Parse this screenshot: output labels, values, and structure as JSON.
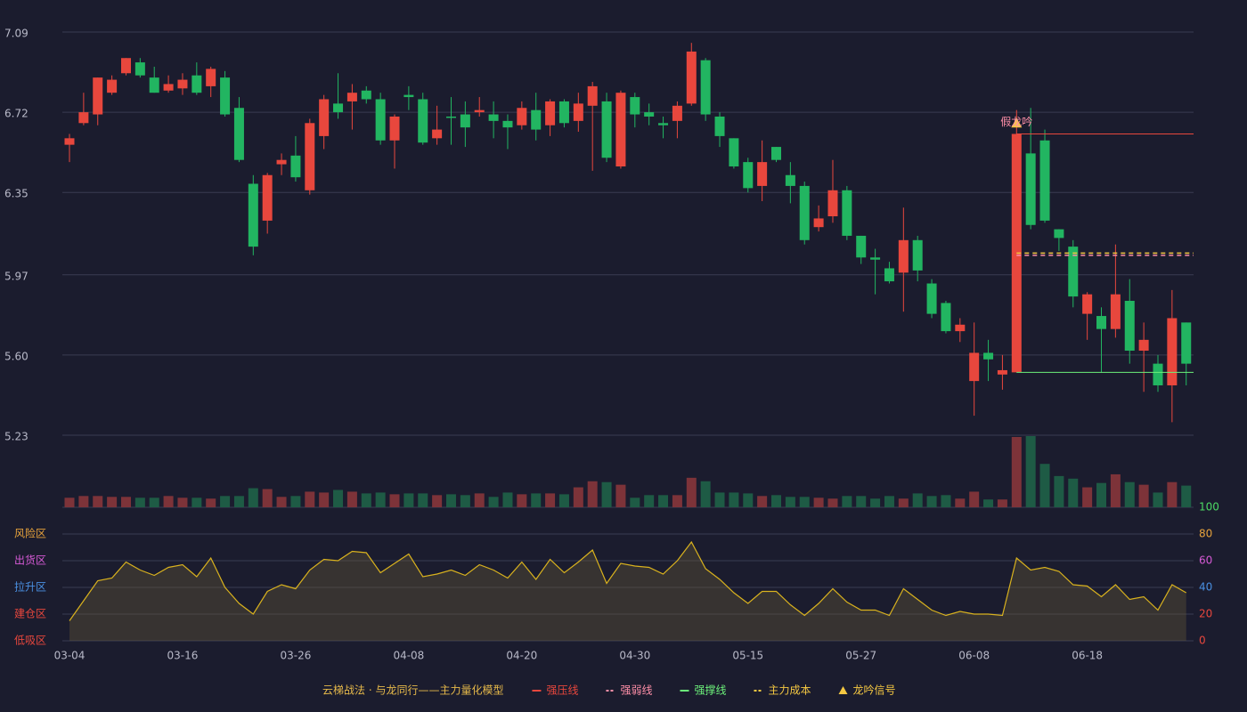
{
  "chart_data": {
    "type": "candlestick",
    "title": "云梯战法 · 与龙同行——主力量化模型",
    "categories": [
      "03-04",
      null,
      null,
      null,
      null,
      null,
      null,
      null,
      "03-16",
      null,
      null,
      null,
      null,
      null,
      null,
      null,
      "03-26",
      null,
      null,
      null,
      null,
      null,
      null,
      null,
      "04-08",
      null,
      null,
      null,
      null,
      null,
      null,
      null,
      "04-20",
      null,
      null,
      null,
      null,
      null,
      null,
      null,
      "04-30",
      null,
      null,
      null,
      null,
      null,
      null,
      null,
      "05-15",
      null,
      null,
      null,
      null,
      null,
      null,
      null,
      "05-27",
      null,
      null,
      null,
      null,
      null,
      null,
      null,
      "06-08",
      null,
      null,
      null,
      null,
      null,
      null,
      null,
      "06-18",
      null,
      null,
      null,
      null,
      null,
      null,
      null
    ],
    "up_color": "#e8473d",
    "down_color": "#22b561",
    "open": [
      6.57,
      6.67,
      6.71,
      6.81,
      6.9,
      6.95,
      6.88,
      6.82,
      6.83,
      6.89,
      6.84,
      6.88,
      6.74,
      6.39,
      6.22,
      6.48,
      6.52,
      6.36,
      6.61,
      6.76,
      6.77,
      6.82,
      6.78,
      6.59,
      6.8,
      6.78,
      6.6,
      6.7,
      6.71,
      6.72,
      6.71,
      6.68,
      6.66,
      6.73,
      6.66,
      6.77,
      6.68,
      6.75,
      6.77,
      6.47,
      6.79,
      6.72,
      6.67,
      6.68,
      6.76,
      6.96,
      6.7,
      6.6,
      6.49,
      6.38,
      6.56,
      6.43,
      6.38,
      6.19,
      6.24,
      6.36,
      6.15,
      6.05,
      6.0,
      5.98,
      6.13,
      5.93,
      5.84,
      5.71,
      5.48,
      5.61,
      5.51,
      5.52,
      6.53,
      6.59,
      6.18,
      6.1,
      5.79,
      5.78,
      5.72,
      5.85,
      5.62,
      5.56,
      5.46,
      5.75
    ],
    "close": [
      6.6,
      6.72,
      6.88,
      6.87,
      6.97,
      6.89,
      6.81,
      6.85,
      6.87,
      6.81,
      6.92,
      6.71,
      6.5,
      6.1,
      6.43,
      6.5,
      6.42,
      6.67,
      6.78,
      6.72,
      6.81,
      6.78,
      6.59,
      6.7,
      6.79,
      6.58,
      6.64,
      6.7,
      6.65,
      6.73,
      6.68,
      6.65,
      6.74,
      6.64,
      6.77,
      6.67,
      6.76,
      6.84,
      6.51,
      6.81,
      6.71,
      6.7,
      6.66,
      6.75,
      7.0,
      6.71,
      6.61,
      6.47,
      6.37,
      6.49,
      6.5,
      6.38,
      6.13,
      6.23,
      6.36,
      6.15,
      6.05,
      6.04,
      5.94,
      6.13,
      5.99,
      5.79,
      5.71,
      5.74,
      5.61,
      5.58,
      5.53,
      6.62,
      6.2,
      6.22,
      6.14,
      5.87,
      5.88,
      5.72,
      5.88,
      5.62,
      5.67,
      5.46,
      5.77,
      5.56
    ],
    "high": [
      6.62,
      6.81,
      6.88,
      6.89,
      6.97,
      6.97,
      6.93,
      6.89,
      6.9,
      6.95,
      6.93,
      6.91,
      6.79,
      6.43,
      6.44,
      6.53,
      6.61,
      6.69,
      6.8,
      6.9,
      6.85,
      6.84,
      6.81,
      6.71,
      6.84,
      6.81,
      6.75,
      6.79,
      6.77,
      6.79,
      6.77,
      6.71,
      6.77,
      6.81,
      6.78,
      6.78,
      6.81,
      6.86,
      6.81,
      6.82,
      6.81,
      6.76,
      6.7,
      6.77,
      7.04,
      6.97,
      6.72,
      6.6,
      6.51,
      6.59,
      6.56,
      6.49,
      6.4,
      6.29,
      6.5,
      6.38,
      6.15,
      6.09,
      6.03,
      6.28,
      6.15,
      5.95,
      5.85,
      5.77,
      5.75,
      5.67,
      5.6,
      6.73,
      6.74,
      6.64,
      6.18,
      6.13,
      5.89,
      5.82,
      6.11,
      5.95,
      5.75,
      5.6,
      5.9,
      5.75
    ],
    "low": [
      6.49,
      6.66,
      6.66,
      6.8,
      6.89,
      6.88,
      6.81,
      6.81,
      6.8,
      6.8,
      6.79,
      6.7,
      6.49,
      6.06,
      6.16,
      6.43,
      6.4,
      6.34,
      6.55,
      6.69,
      6.64,
      6.76,
      6.57,
      6.46,
      6.73,
      6.57,
      6.57,
      6.57,
      6.56,
      6.7,
      6.6,
      6.55,
      6.64,
      6.59,
      6.61,
      6.65,
      6.63,
      6.45,
      6.49,
      6.46,
      6.65,
      6.66,
      6.6,
      6.6,
      6.75,
      6.68,
      6.56,
      6.46,
      6.35,
      6.31,
      6.49,
      6.3,
      6.11,
      6.17,
      6.21,
      6.13,
      6.02,
      5.88,
      5.93,
      5.8,
      5.94,
      5.77,
      5.7,
      5.66,
      5.32,
      5.48,
      5.44,
      5.52,
      6.18,
      6.21,
      6.08,
      5.82,
      5.67,
      5.52,
      5.68,
      5.56,
      5.43,
      5.43,
      5.29,
      5.46
    ],
    "ylim": [
      5.23,
      7.09
    ],
    "yticks": [
      7.09,
      6.72,
      6.35,
      5.97,
      "5.60",
      5.23
    ],
    "grid": true,
    "overlays": [
      {
        "name": "强压线",
        "color": "#e8473d",
        "dashed": false,
        "values": [
          null,
          null,
          null,
          null,
          null,
          null,
          null,
          null,
          null,
          null,
          null,
          null,
          null,
          null,
          null,
          null,
          null,
          null,
          null,
          null,
          null,
          null,
          null,
          null,
          null,
          null,
          null,
          null,
          null,
          null,
          null,
          null,
          null,
          null,
          null,
          null,
          null,
          null,
          null,
          null,
          null,
          null,
          null,
          null,
          null,
          null,
          null,
          null,
          null,
          null,
          null,
          null,
          null,
          null,
          null,
          null,
          null,
          null,
          null,
          null,
          null,
          null,
          null,
          null,
          null,
          null,
          null,
          6.62,
          6.62,
          6.62,
          6.62,
          6.62,
          6.62,
          6.62,
          6.62,
          6.62,
          6.62,
          6.62,
          6.62,
          6.62
        ]
      },
      {
        "name": "强弱线",
        "color": "#ff8fa8",
        "dashed": true,
        "values": [
          null,
          null,
          null,
          null,
          null,
          null,
          null,
          null,
          null,
          null,
          null,
          null,
          null,
          null,
          null,
          null,
          null,
          null,
          null,
          null,
          null,
          null,
          null,
          null,
          null,
          null,
          null,
          null,
          null,
          null,
          null,
          null,
          null,
          null,
          null,
          null,
          null,
          null,
          null,
          null,
          null,
          null,
          null,
          null,
          null,
          null,
          null,
          null,
          null,
          null,
          null,
          null,
          null,
          null,
          null,
          null,
          null,
          null,
          null,
          null,
          null,
          null,
          null,
          null,
          null,
          null,
          null,
          6.06,
          6.06,
          6.06,
          6.06,
          6.06,
          6.06,
          6.06,
          6.06,
          6.06,
          6.06,
          6.06,
          6.06,
          6.06
        ]
      },
      {
        "name": "强撑线",
        "color": "#6cf07a",
        "dashed": false,
        "values": [
          null,
          null,
          null,
          null,
          null,
          null,
          null,
          null,
          null,
          null,
          null,
          null,
          null,
          null,
          null,
          null,
          null,
          null,
          null,
          null,
          null,
          null,
          null,
          null,
          null,
          null,
          null,
          null,
          null,
          null,
          null,
          null,
          null,
          null,
          null,
          null,
          null,
          null,
          null,
          null,
          null,
          null,
          null,
          null,
          null,
          null,
          null,
          null,
          null,
          null,
          null,
          null,
          null,
          null,
          null,
          null,
          null,
          null,
          null,
          null,
          null,
          null,
          null,
          null,
          null,
          null,
          null,
          5.52,
          5.52,
          5.52,
          5.52,
          5.52,
          5.52,
          5.52,
          5.52,
          5.52,
          5.52,
          5.52,
          5.52,
          5.52
        ]
      },
      {
        "name": "主力成本",
        "color": "#f5c842",
        "dashed": true,
        "values": [
          null,
          null,
          null,
          null,
          null,
          null,
          null,
          null,
          null,
          null,
          null,
          null,
          null,
          null,
          null,
          null,
          null,
          null,
          null,
          null,
          null,
          null,
          null,
          null,
          null,
          null,
          null,
          null,
          null,
          null,
          null,
          null,
          null,
          null,
          null,
          null,
          null,
          null,
          null,
          null,
          null,
          null,
          null,
          null,
          null,
          null,
          null,
          null,
          null,
          null,
          null,
          null,
          null,
          null,
          null,
          null,
          null,
          null,
          null,
          null,
          null,
          null,
          null,
          null,
          null,
          null,
          null,
          6.07,
          6.07,
          6.07,
          6.07,
          6.07,
          6.07,
          6.07,
          6.07,
          6.07,
          6.07,
          6.07,
          6.07,
          6.07
        ]
      }
    ],
    "signal": {
      "name": "龙吟信号",
      "label": "假龙吟",
      "color": "#f5c842",
      "label_color": "#ff8fa8",
      "values": [
        null,
        null,
        null,
        null,
        null,
        null,
        null,
        null,
        null,
        null,
        null,
        null,
        null,
        null,
        null,
        null,
        null,
        null,
        null,
        null,
        null,
        null,
        null,
        null,
        null,
        null,
        null,
        null,
        null,
        null,
        null,
        null,
        null,
        null,
        null,
        null,
        null,
        null,
        null,
        null,
        null,
        null,
        null,
        null,
        null,
        null,
        null,
        null,
        null,
        null,
        null,
        null,
        null,
        null,
        null,
        null,
        null,
        null,
        null,
        null,
        null,
        null,
        null,
        null,
        null,
        null,
        null,
        6.67,
        null,
        null,
        null,
        null,
        null,
        null,
        null,
        null,
        null,
        null,
        null,
        null
      ]
    },
    "volume": {
      "up_color": "#7d3339",
      "down_color": "#1e5b45",
      "values": [
        11,
        13,
        13,
        12,
        12,
        11,
        11,
        13,
        11,
        11,
        10,
        13,
        13,
        22,
        21,
        12,
        13,
        18,
        17,
        20,
        18,
        16,
        17,
        15,
        16,
        16,
        14,
        15,
        14,
        16,
        12,
        17,
        15,
        16,
        16,
        15,
        23,
        30,
        29,
        26,
        11,
        14,
        14,
        14,
        34,
        30,
        17,
        17,
        16,
        13,
        14,
        12,
        12,
        11,
        10,
        13,
        13,
        10,
        13,
        10,
        16,
        13,
        14,
        10,
        18,
        9,
        9,
        81,
        82,
        50,
        36,
        33,
        23,
        28,
        38,
        29,
        26,
        17,
        29,
        25
      ]
    },
    "indicator": {
      "color": "#d9b21e",
      "values": [
        15,
        30,
        45,
        47,
        59,
        53,
        49,
        55,
        57,
        48,
        62,
        40,
        28,
        20,
        37,
        42,
        39,
        53,
        61,
        60,
        67,
        66,
        51,
        58,
        65,
        48,
        50,
        53,
        49,
        57,
        53,
        47,
        59,
        46,
        61,
        51,
        59,
        68,
        43,
        58,
        56,
        55,
        50,
        60,
        74,
        54,
        46,
        36,
        28,
        37,
        37,
        27,
        19,
        28,
        39,
        29,
        23,
        23,
        19,
        39,
        31,
        23,
        19,
        22,
        20,
        20,
        19,
        62,
        53,
        55,
        52,
        42,
        41,
        33,
        42,
        31,
        33,
        23,
        42,
        36
      ],
      "ylim": [
        0,
        100
      ],
      "yticks": [
        100,
        80,
        60,
        40,
        20,
        0
      ],
      "ytick_colors": [
        "#4cd964",
        "#e6a23c",
        "#d65ad6",
        "#4a90e2",
        "#e8473d",
        "#e8473d"
      ],
      "zones": [
        {
          "label": "风险区",
          "value": 80,
          "color": "#e6a23c"
        },
        {
          "label": "出货区",
          "value": 60,
          "color": "#d65ad6"
        },
        {
          "label": "拉升区",
          "value": 40,
          "color": "#4a90e2"
        },
        {
          "label": "建仓区",
          "value": 20,
          "color": "#e8473d"
        },
        {
          "label": "低吸区",
          "value": 0,
          "color": "#e8473d"
        }
      ]
    }
  }
}
